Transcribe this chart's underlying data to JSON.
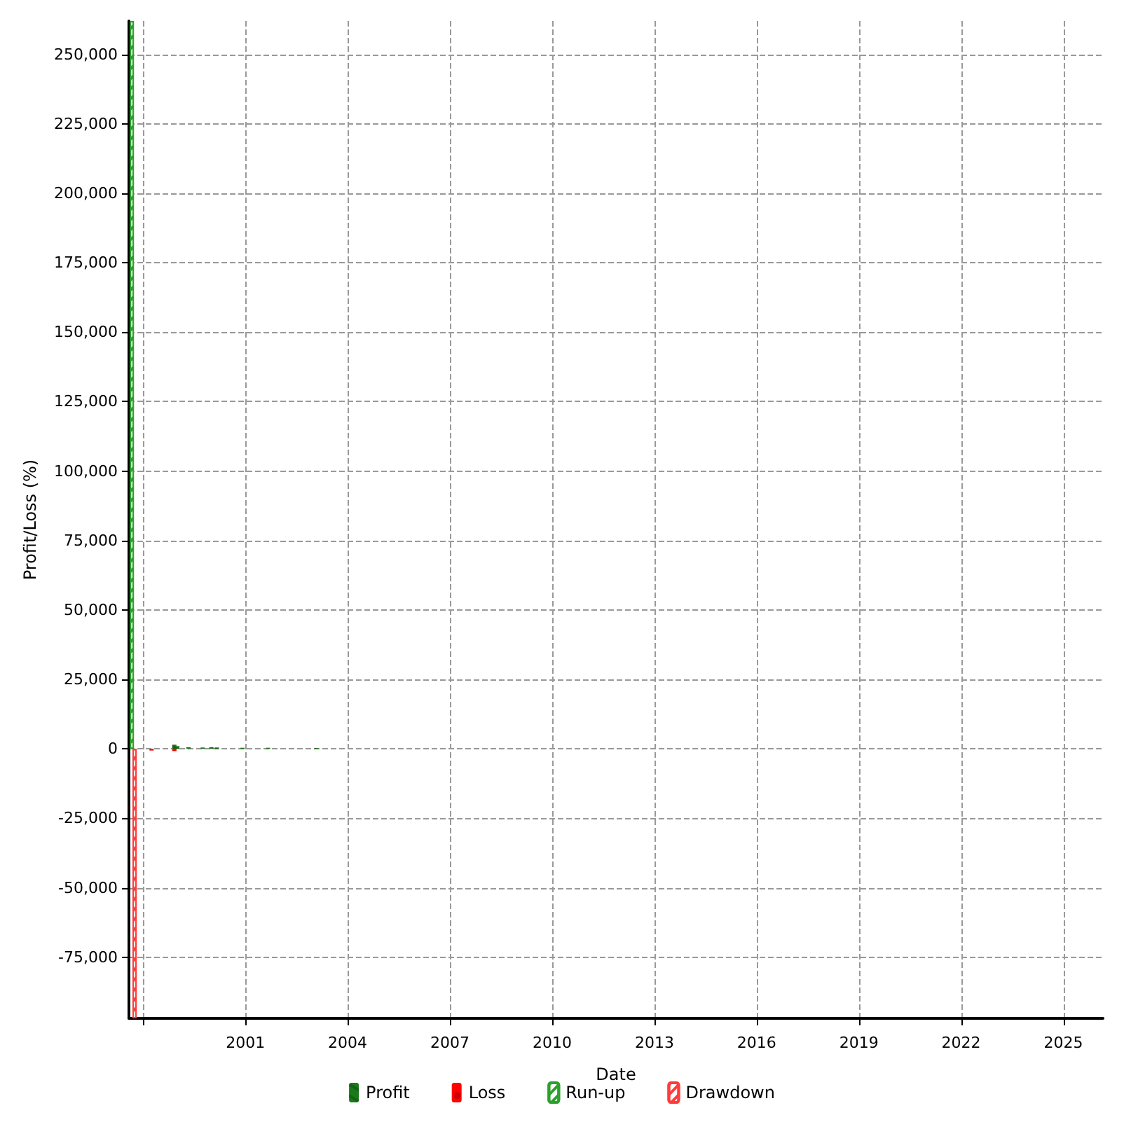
{
  "chart_data": {
    "type": "bar",
    "xlabel": "Date",
    "ylabel": "Profit/Loss (%)",
    "xlim": [
      "1997-08",
      "2026-03"
    ],
    "xticks": [
      {
        "value": "1998",
        "label": null
      },
      "2001",
      "2004",
      "2007",
      "2010",
      "2013",
      "2016",
      "2019",
      "2022",
      "2025"
    ],
    "ylim": [
      -97000,
      262000
    ],
    "yticks": [
      {
        "value": -75000,
        "label": "-75,000"
      },
      {
        "value": -50000,
        "label": "-50,000"
      },
      {
        "value": -25000,
        "label": "-25,000"
      },
      0,
      {
        "value": 25000,
        "label": "25,000"
      },
      {
        "value": 50000,
        "label": "50,000"
      },
      {
        "value": 75000,
        "label": "75,000"
      },
      {
        "value": 100000,
        "label": "100,000"
      },
      {
        "value": 125000,
        "label": "125,000"
      },
      {
        "value": 150000,
        "label": "150,000"
      },
      {
        "value": 175000,
        "label": "175,000"
      },
      {
        "value": 200000,
        "label": "200,000"
      },
      {
        "value": 225000,
        "label": "225,000"
      },
      {
        "value": 250000,
        "label": "250,000"
      }
    ],
    "series": [
      {
        "name": "Profit",
        "color": "#1a7a1a",
        "x": [
          "1998-12",
          "1999-01",
          "1999-05",
          "1999-10",
          "2000-01",
          "2000-03",
          "2000-12",
          "2001-09",
          "2003-02"
        ],
        "values": [
          1500,
          1000,
          600,
          500,
          600,
          500,
          400,
          400,
          300
        ]
      },
      {
        "name": "Loss",
        "color": "#ff0000",
        "x": [
          "1998-04",
          "1998-12"
        ],
        "values": [
          -600,
          -800
        ]
      },
      {
        "name": "Run-up",
        "color": "#2ca02c",
        "x": [
          "1997-09"
        ],
        "values": [
          262000
        ]
      },
      {
        "name": "Drawdown",
        "color": "#ff3b3b",
        "x": [
          "1997-10"
        ],
        "values": [
          -97000
        ]
      }
    ],
    "grid": true,
    "legend": "bottom"
  }
}
